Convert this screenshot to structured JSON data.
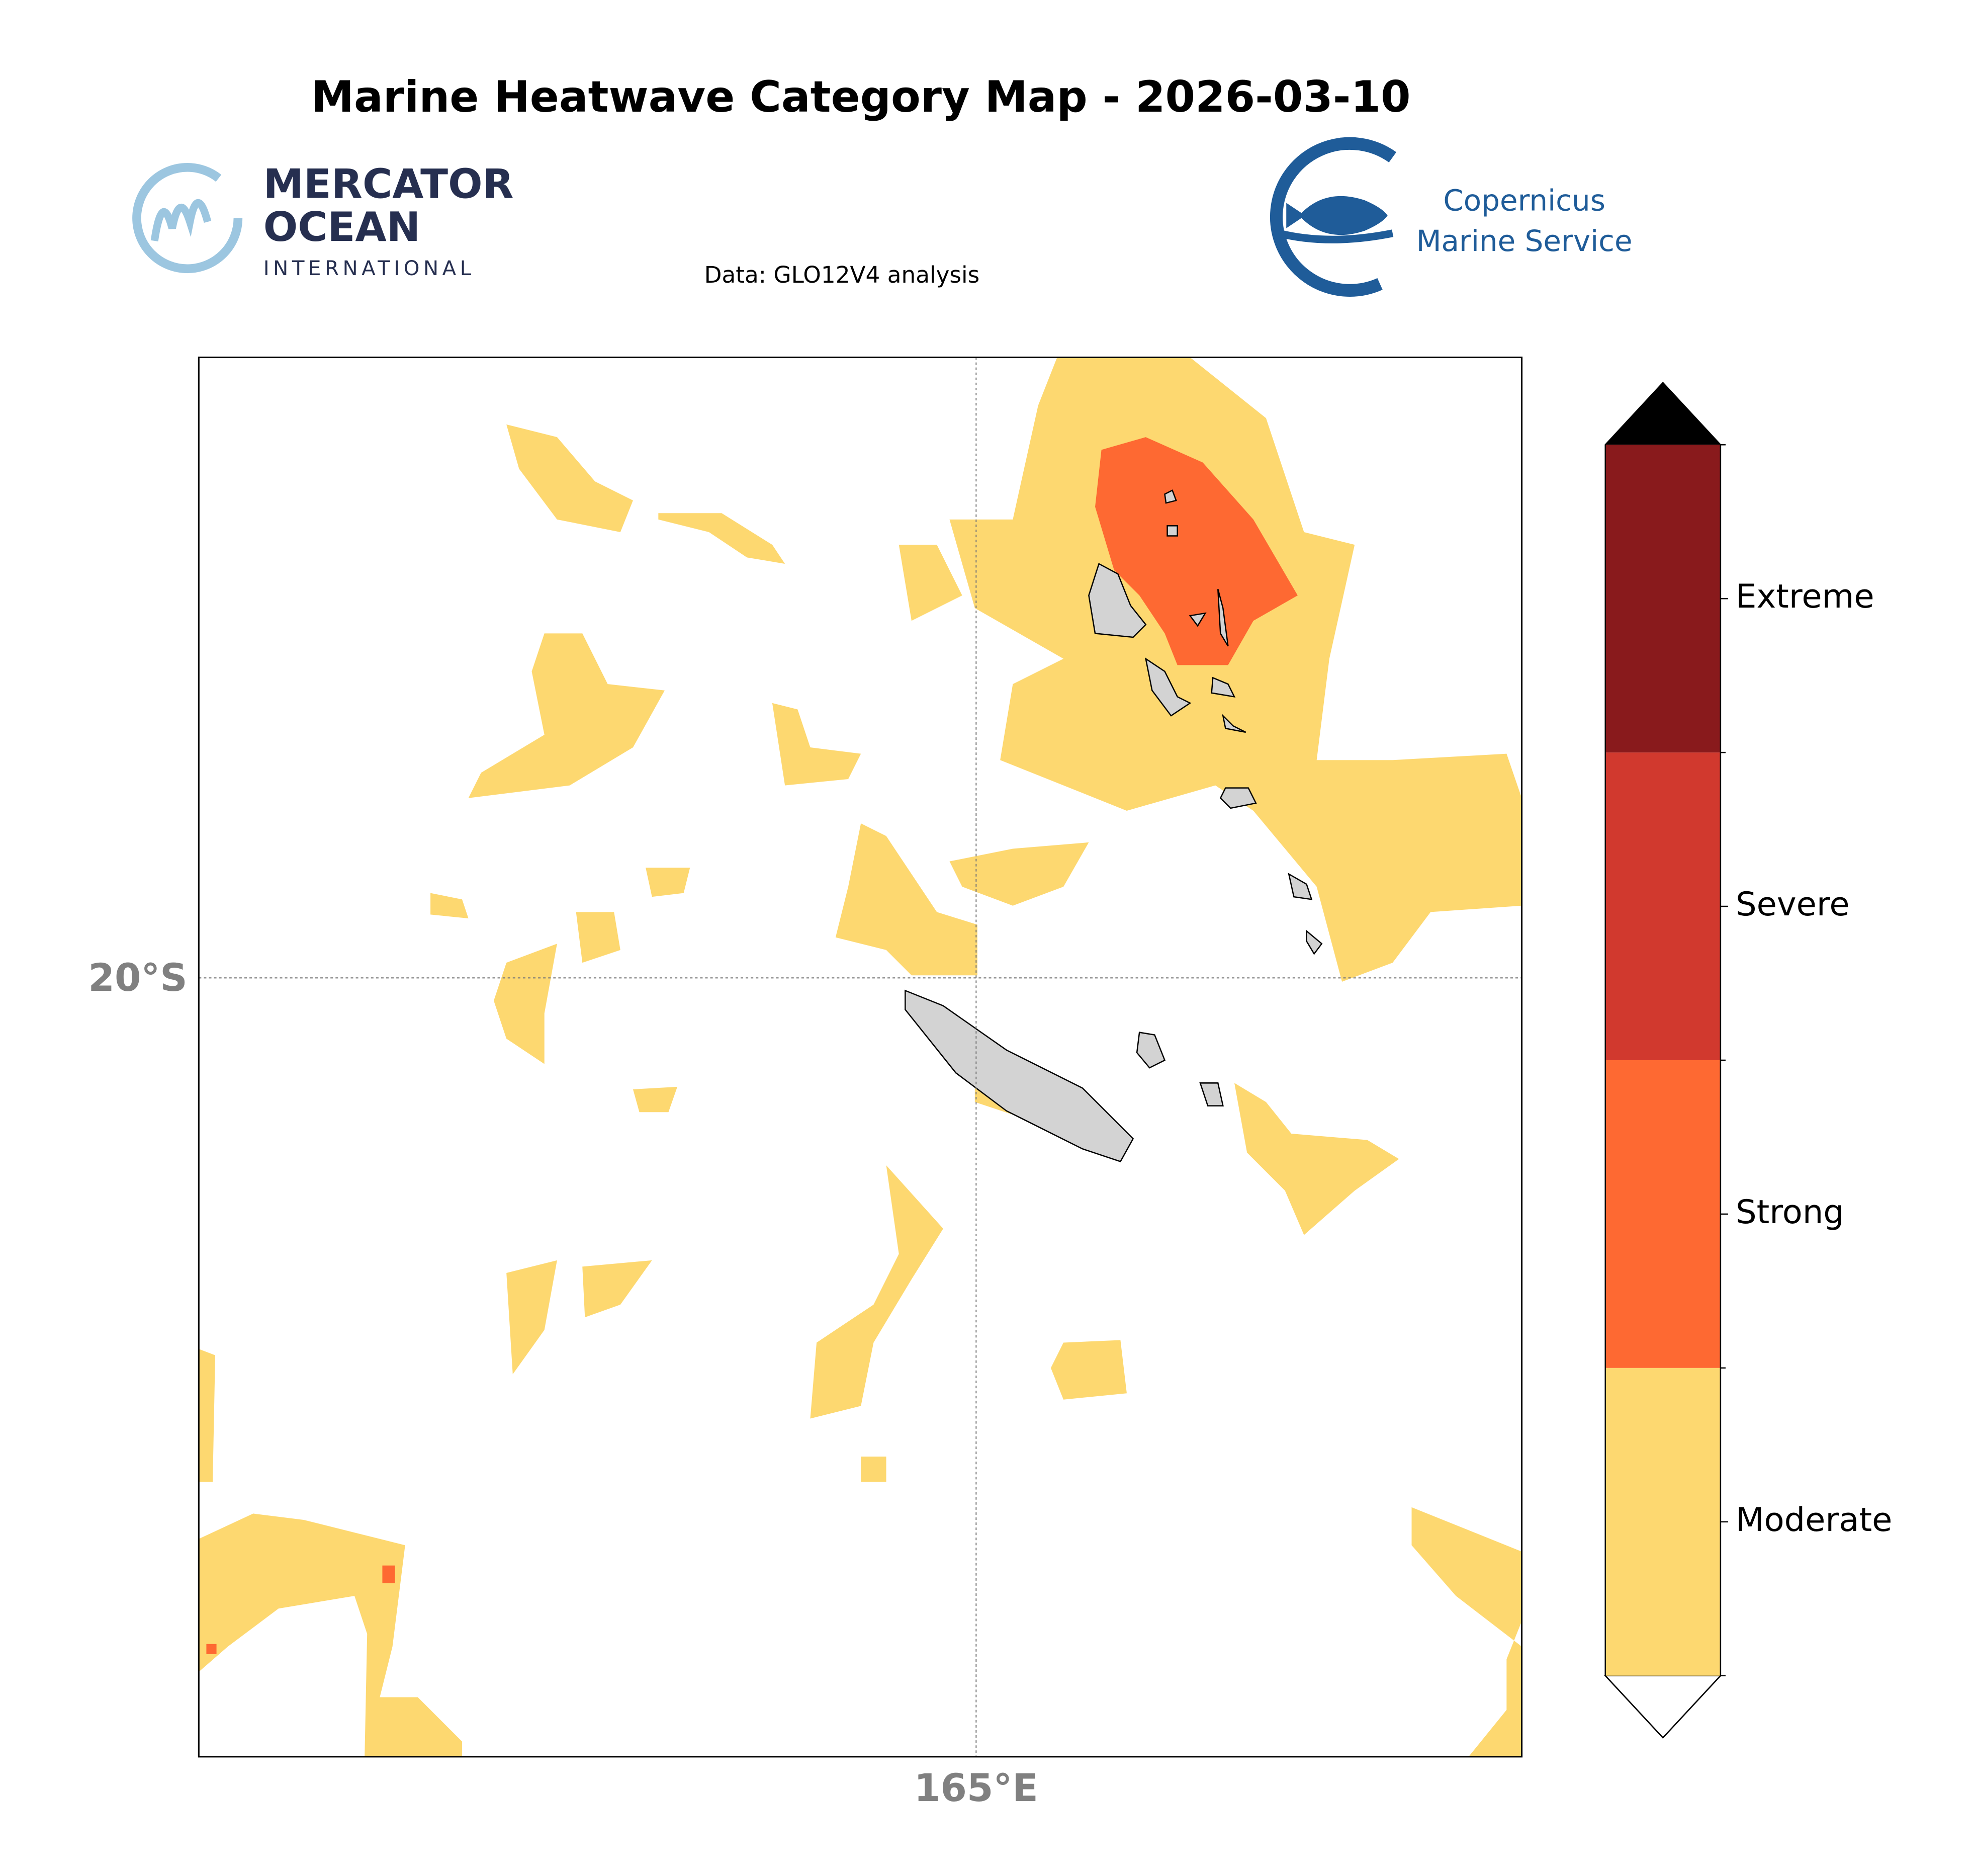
{
  "title": "Marine Heatwave Category Map - 2026-03-10",
  "logos": {
    "mercator": [
      "MERCATOR",
      "OCEAN",
      "INTERNATIONAL"
    ],
    "copernicus": [
      "Copernicus",
      "Marine Service"
    ]
  },
  "subtitle": "Data: GLO12V4 analysis",
  "map": {
    "lat_labels": [
      "20°S"
    ],
    "lon_labels": [
      "165°E"
    ],
    "land_color": "#d3d3d3"
  },
  "colorbar": {
    "categories": [
      {
        "label": "Moderate",
        "color": "#fdd870"
      },
      {
        "label": "Strong",
        "color": "#fe6932"
      },
      {
        "label": "Severe",
        "color": "#d1392e"
      },
      {
        "label": "Extreme",
        "color": "#891a1c"
      }
    ],
    "over_color": "#000000",
    "under_color": "#ffffff"
  }
}
